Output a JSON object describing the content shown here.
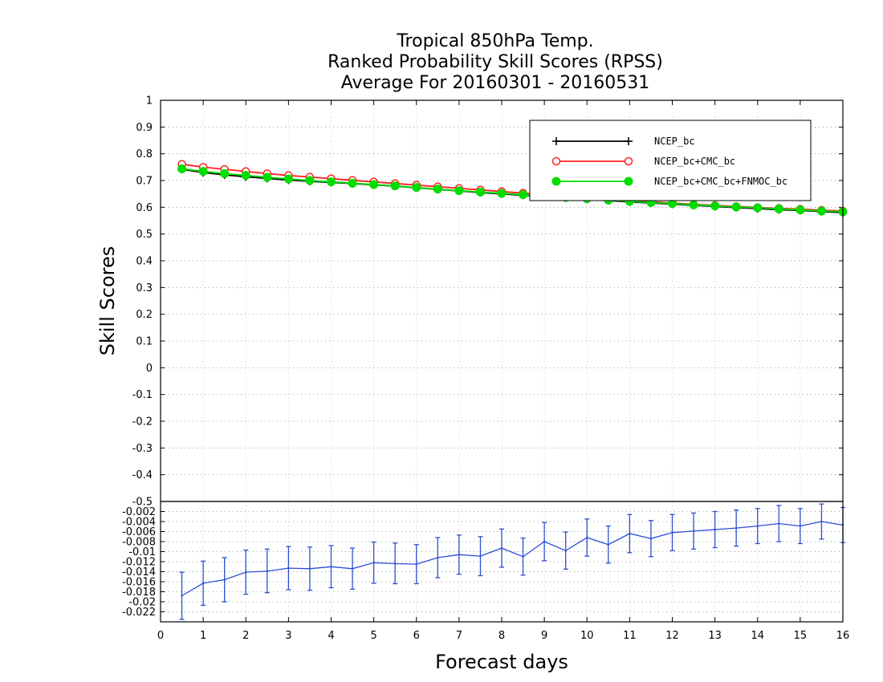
{
  "chart_data": [
    {
      "type": "line",
      "title_lines": [
        "Tropical 850hPa Temp.",
        "Ranked Probability Skill Scores (RPSS)",
        "Average For 20160301 - 20160531"
      ],
      "xlabel": "Forecast days",
      "ylabel": "Skill Scores",
      "xlim": [
        0,
        16
      ],
      "ylim": [
        -0.5,
        1
      ],
      "x_ticks": [
        "0",
        "1",
        "2",
        "3",
        "4",
        "5",
        "6",
        "7",
        "8",
        "9",
        "10",
        "11",
        "12",
        "13",
        "14",
        "15",
        "16"
      ],
      "y_ticks": [
        "1",
        "0.9",
        "0.8",
        "0.7",
        "0.6",
        "0.5",
        "0.4",
        "0.3",
        "0.2",
        "0.1",
        "0",
        "-0.1",
        "-0.2",
        "-0.3",
        "-0.4",
        "-0.5"
      ],
      "grid": true,
      "legend_position": "top-right",
      "x": [
        0.5,
        1,
        1.5,
        2,
        2.5,
        3,
        3.5,
        4,
        4.5,
        5,
        5.5,
        6,
        6.5,
        7,
        7.5,
        8,
        8.5,
        9,
        9.5,
        10,
        10.5,
        11,
        11.5,
        12,
        12.5,
        13,
        13.5,
        14,
        14.5,
        15,
        15.5,
        16
      ],
      "series": [
        {
          "name": "NCEP_bc",
          "color": "#000000",
          "marker": "plus",
          "values": [
            0.742,
            0.73,
            0.721,
            0.714,
            0.708,
            0.702,
            0.697,
            0.693,
            0.689,
            0.684,
            0.679,
            0.673,
            0.667,
            0.661,
            0.655,
            0.65,
            0.645,
            0.64,
            0.635,
            0.63,
            0.625,
            0.62,
            0.616,
            0.612,
            0.607,
            0.603,
            0.599,
            0.595,
            0.591,
            0.588,
            0.584,
            0.58
          ]
        },
        {
          "name": "NCEP_bc+CMC_bc",
          "color": "#ff2020",
          "marker": "open-circle",
          "values": [
            0.761,
            0.75,
            0.742,
            0.734,
            0.726,
            0.719,
            0.713,
            0.707,
            0.701,
            0.695,
            0.689,
            0.683,
            0.677,
            0.671,
            0.665,
            0.659,
            0.653,
            0.647,
            0.641,
            0.636,
            0.631,
            0.626,
            0.621,
            0.616,
            0.611,
            0.607,
            0.603,
            0.599,
            0.596,
            0.593,
            0.589,
            0.586
          ]
        },
        {
          "name": "NCEP_bc+CMC_bc+FNMOC_bc",
          "color": "#00dd00",
          "marker": "filled-circle",
          "values": [
            0.744,
            0.734,
            0.726,
            0.719,
            0.712,
            0.706,
            0.7,
            0.695,
            0.69,
            0.685,
            0.68,
            0.674,
            0.668,
            0.662,
            0.657,
            0.652,
            0.647,
            0.642,
            0.637,
            0.632,
            0.627,
            0.622,
            0.618,
            0.614,
            0.609,
            0.605,
            0.601,
            0.598,
            0.594,
            0.59,
            0.586,
            0.583
          ]
        }
      ]
    },
    {
      "type": "line",
      "xlim": [
        0,
        16
      ],
      "ylim": [
        -0.024,
        0
      ],
      "y_ticks": [
        "-0.002",
        "-0.004",
        "-0.006",
        "-0.008",
        "-0.01",
        "-0.012",
        "-0.014",
        "-0.016",
        "-0.018",
        "-0.02",
        "-0.022"
      ],
      "grid": true,
      "color": "#2a4fd6",
      "error_bars": true,
      "x": [
        0.5,
        1,
        1.5,
        2,
        2.5,
        3,
        3.5,
        4,
        4.5,
        5,
        5.5,
        6,
        6.5,
        7,
        7.5,
        8,
        8.5,
        9,
        9.5,
        10,
        10.5,
        11,
        11.5,
        12,
        12.5,
        13,
        13.5,
        14,
        14.5,
        15,
        15.5,
        16
      ],
      "values": [
        -0.0188,
        -0.0163,
        -0.0156,
        -0.0141,
        -0.0139,
        -0.0133,
        -0.0134,
        -0.013,
        -0.0134,
        -0.0122,
        -0.0124,
        -0.0125,
        -0.0112,
        -0.0106,
        -0.0109,
        -0.0093,
        -0.011,
        -0.008,
        -0.0098,
        -0.0072,
        -0.0086,
        -0.0064,
        -0.0074,
        -0.0062,
        -0.0059,
        -0.0056,
        -0.0053,
        -0.0049,
        -0.0044,
        -0.0049,
        -0.004,
        -0.0047
      ],
      "err_low": [
        -0.0235,
        -0.0207,
        -0.02,
        -0.0185,
        -0.0182,
        -0.0176,
        -0.0177,
        -0.0172,
        -0.0175,
        -0.0163,
        -0.0164,
        -0.0164,
        -0.0152,
        -0.0145,
        -0.0148,
        -0.0131,
        -0.0147,
        -0.0118,
        -0.0135,
        -0.0109,
        -0.0123,
        -0.0102,
        -0.011,
        -0.0098,
        -0.0095,
        -0.0092,
        -0.0089,
        -0.0084,
        -0.008,
        -0.0084,
        -0.0075,
        -0.0082
      ],
      "err_high": [
        -0.0141,
        -0.0119,
        -0.0112,
        -0.0097,
        -0.0095,
        -0.009,
        -0.0091,
        -0.0088,
        -0.0093,
        -0.0081,
        -0.0083,
        -0.0086,
        -0.0072,
        -0.0067,
        -0.007,
        -0.0055,
        -0.0073,
        -0.0042,
        -0.0061,
        -0.0035,
        -0.0049,
        -0.0026,
        -0.0038,
        -0.0026,
        -0.0023,
        -0.002,
        -0.0017,
        -0.0014,
        -0.0008,
        -0.0014,
        -0.0005,
        -0.0012
      ]
    }
  ]
}
